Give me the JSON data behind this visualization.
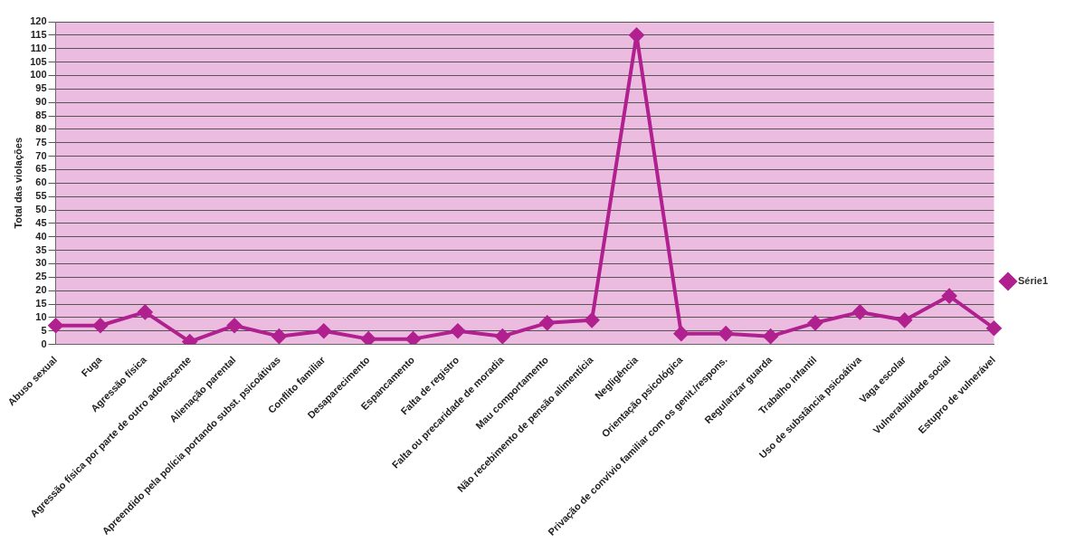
{
  "chart_data": {
    "type": "line",
    "ylabel": "Total das violações",
    "categories": [
      "Abuso sexual",
      "Fuga",
      "Agressão física",
      "Agressão física por parte de outro adolescente",
      "Alienação parental",
      "Apreendido pela polícia portando subst. psicoátivas",
      "Conflito familiar",
      "Desaparecimento",
      "Espancamento",
      "Falta de registro",
      "Falta ou precaridade de moradia",
      "Mau comportamento",
      "Não recebimento de pensão alimentícia",
      "Negligência",
      "Orientação psicológica",
      "Privação de convívio familiar com os genit./respons.",
      "Regularizar guarda",
      "Trabalho infantil",
      "Uso de substância psicoátiva",
      "Vaga escolar",
      "Vulnerabilidade social",
      "Estupro de vulnerável"
    ],
    "series": [
      {
        "name": "Série1",
        "color": "#b0208f",
        "values": [
          7,
          7,
          12,
          1,
          7,
          3,
          5,
          2,
          2,
          5,
          3,
          8,
          9,
          115,
          4,
          4,
          3,
          8,
          12,
          9,
          18,
          6
        ]
      }
    ],
    "ylim": [
      0,
      120
    ],
    "yticks": [
      0,
      5,
      10,
      15,
      20,
      25,
      30,
      35,
      40,
      45,
      50,
      55,
      60,
      65,
      70,
      75,
      80,
      85,
      90,
      95,
      100,
      105,
      110,
      115,
      120
    ],
    "grid": "y",
    "legend": "right",
    "marker": "diamond",
    "line_style": "solid"
  }
}
